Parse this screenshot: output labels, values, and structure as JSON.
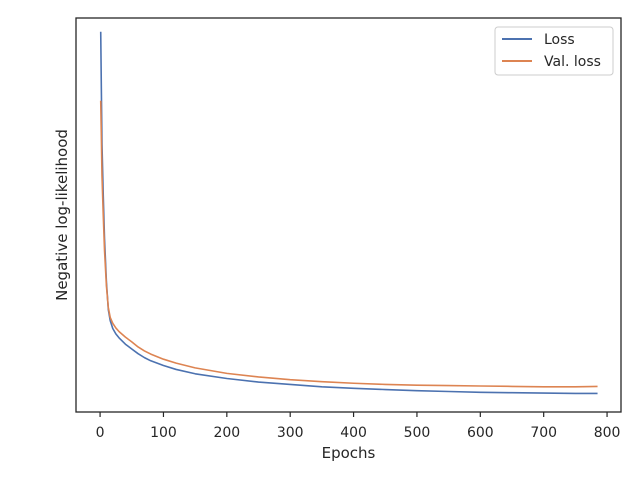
{
  "chart_data": {
    "type": "line",
    "title": "",
    "xlabel": "Epochs",
    "ylabel": "Negative log-likelihood",
    "xlim": [
      -38,
      822
    ],
    "ylim": [
      0,
      1
    ],
    "x_ticks": [
      0,
      100,
      200,
      300,
      400,
      500,
      600,
      700,
      800
    ],
    "y_ticks_shown": false,
    "grid": false,
    "legend_position": "top-right",
    "series": [
      {
        "name": "Loss",
        "color": "#4c72b0",
        "x": [
          1,
          2,
          3,
          5,
          7,
          10,
          13,
          16,
          20,
          25,
          30,
          40,
          50,
          60,
          70,
          80,
          100,
          120,
          150,
          200,
          250,
          300,
          350,
          400,
          450,
          500,
          550,
          600,
          650,
          700,
          750,
          785
        ],
        "y": [
          0.965,
          0.82,
          0.68,
          0.55,
          0.44,
          0.33,
          0.26,
          0.232,
          0.212,
          0.198,
          0.188,
          0.172,
          0.16,
          0.148,
          0.138,
          0.13,
          0.118,
          0.108,
          0.097,
          0.085,
          0.076,
          0.07,
          0.064,
          0.06,
          0.057,
          0.054,
          0.052,
          0.05,
          0.049,
          0.048,
          0.047,
          0.047
        ]
      },
      {
        "name": "Val. loss",
        "color": "#dd8452",
        "x": [
          1,
          2,
          3,
          5,
          7,
          10,
          13,
          16,
          20,
          25,
          30,
          40,
          50,
          60,
          70,
          80,
          100,
          120,
          150,
          200,
          250,
          300,
          350,
          400,
          450,
          500,
          550,
          600,
          650,
          700,
          750,
          785
        ],
        "y": [
          0.79,
          0.7,
          0.6,
          0.5,
          0.41,
          0.32,
          0.265,
          0.24,
          0.225,
          0.213,
          0.204,
          0.19,
          0.178,
          0.165,
          0.155,
          0.147,
          0.134,
          0.124,
          0.112,
          0.098,
          0.089,
          0.082,
          0.077,
          0.073,
          0.07,
          0.068,
          0.067,
          0.066,
          0.065,
          0.064,
          0.064,
          0.065
        ]
      }
    ]
  }
}
